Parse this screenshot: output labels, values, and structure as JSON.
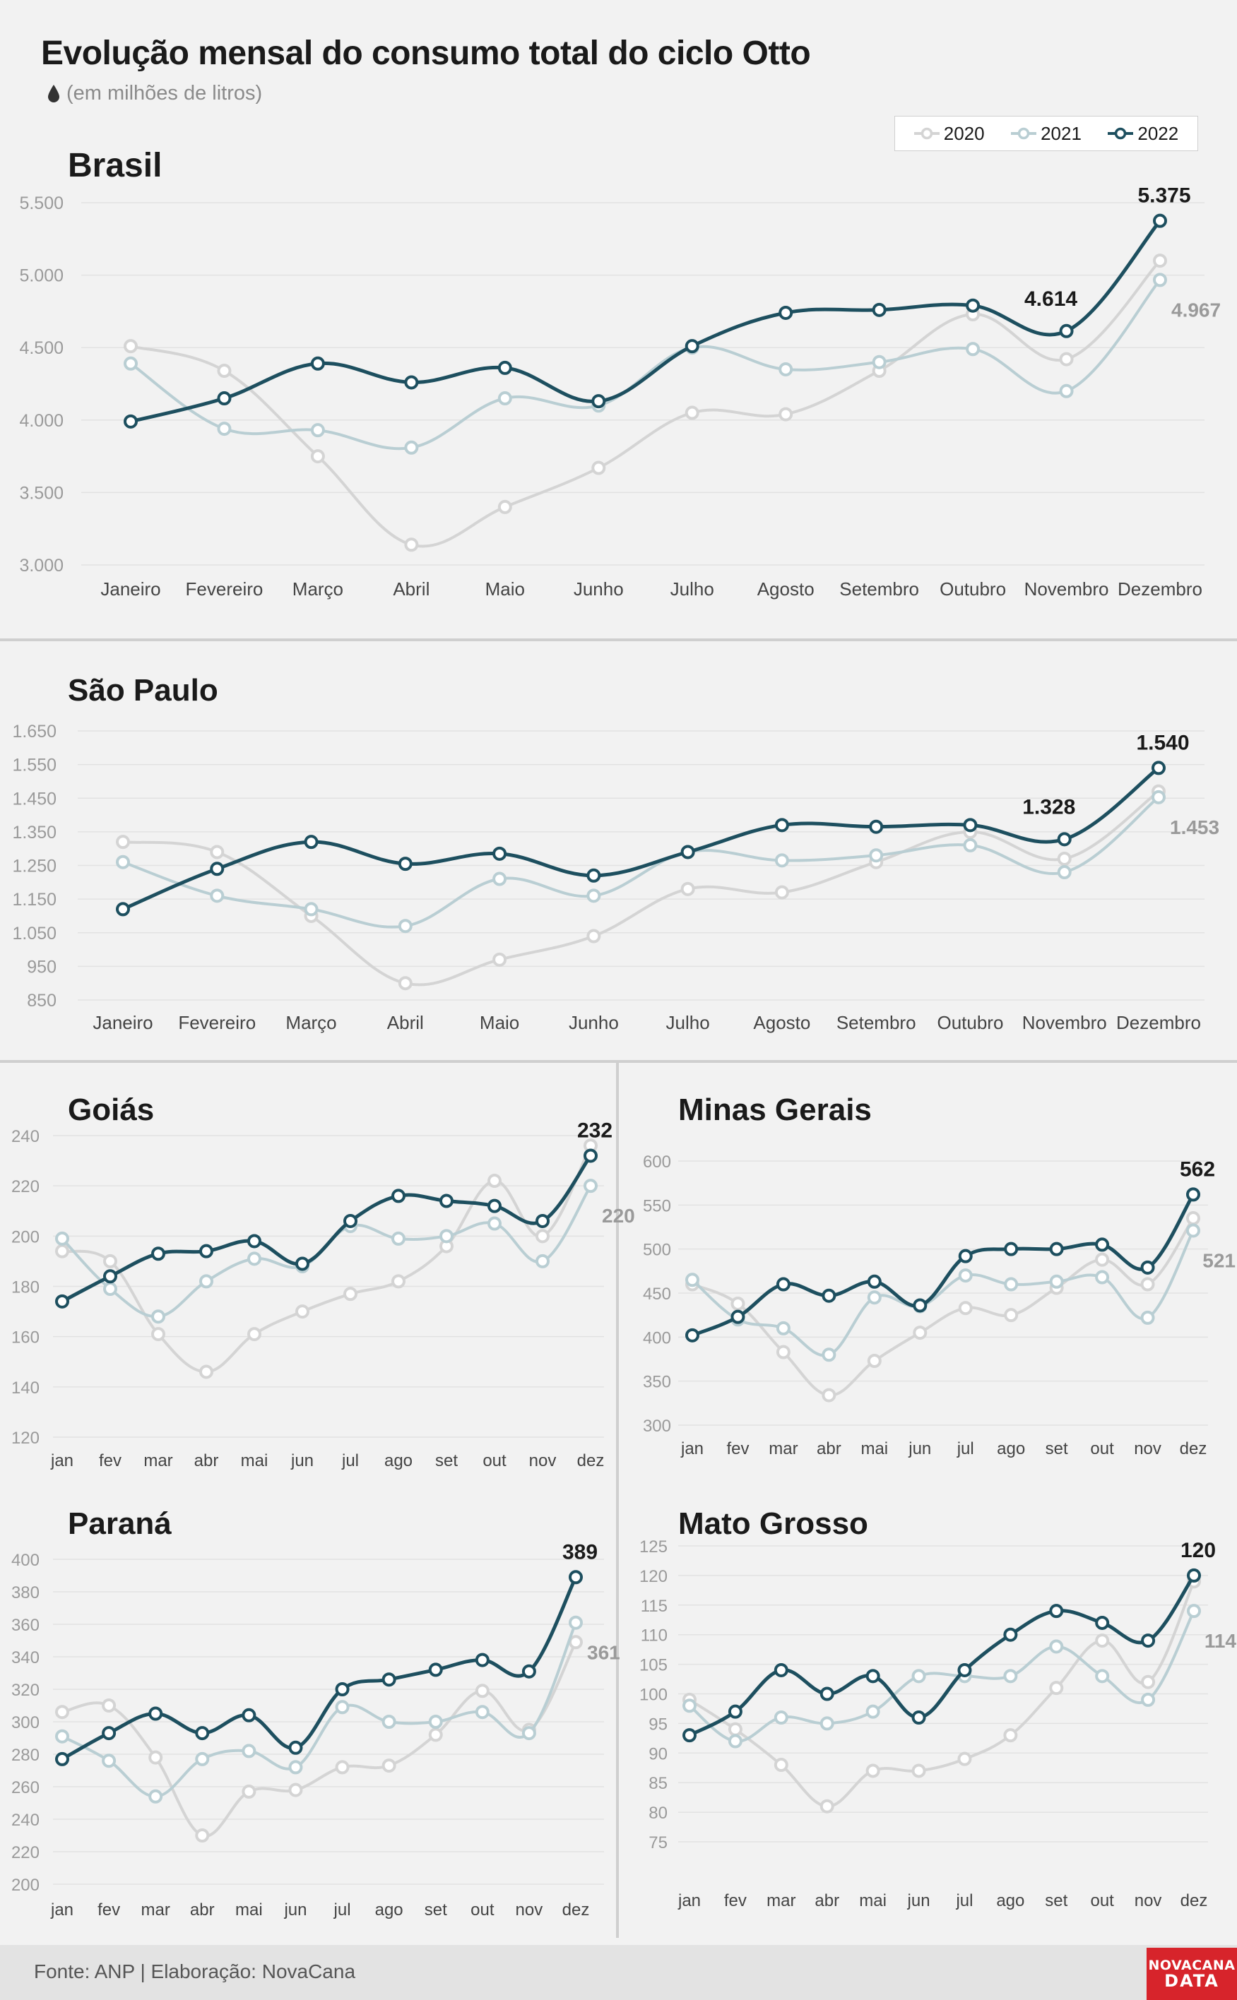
{
  "title": "Evolução mensal do consumo total do ciclo Otto",
  "subtitle": "(em milhões de litros)",
  "icons": {
    "subtitle_icon": "drop-icon"
  },
  "colors": {
    "2020": "#d4d4d4",
    "2021": "#b9ced3",
    "2022": "#1d4f5f"
  },
  "legend": [
    {
      "label": "2020",
      "color": "#d4d4d4"
    },
    {
      "label": "2021",
      "color": "#b9ced3"
    },
    {
      "label": "2022",
      "color": "#1d4f5f"
    }
  ],
  "footer": {
    "source": "Fonte: ANP | Elaboração: NovaCana",
    "logo_line1": "NOVACANA",
    "logo_line2": "DATA"
  },
  "chart_data": [
    {
      "type": "line",
      "title": "Brasil",
      "categories": [
        "Janeiro",
        "Fevereiro",
        "Março",
        "Abril",
        "Maio",
        "Junho",
        "Julho",
        "Agosto",
        "Setembro",
        "Outubro",
        "Novembro",
        "Dezembro"
      ],
      "yticks": [
        "3.000",
        "3.500",
        "4.000",
        "4.500",
        "5.000",
        "5.500"
      ],
      "ylim": [
        3000,
        5500
      ],
      "grid": true,
      "series": [
        {
          "name": "2020",
          "values": [
            4510,
            4340,
            3750,
            3140,
            3400,
            3670,
            4050,
            4040,
            4340,
            4730,
            4420,
            5100
          ]
        },
        {
          "name": "2021",
          "values": [
            4390,
            3940,
            3930,
            3810,
            4150,
            4100,
            4500,
            4350,
            4400,
            4490,
            4200,
            4967
          ]
        },
        {
          "name": "2022",
          "values": [
            3990,
            4150,
            4390,
            4260,
            4360,
            4130,
            4510,
            4740,
            4760,
            4790,
            4614,
            5375
          ]
        }
      ],
      "annotations": [
        {
          "text": "5.375",
          "series": "2022",
          "index": 11
        },
        {
          "text": "4.614",
          "series": "2022",
          "index": 10
        },
        {
          "text": "4.967",
          "series": "2021",
          "index": 11
        }
      ]
    },
    {
      "type": "line",
      "title": "São Paulo",
      "categories": [
        "Janeiro",
        "Fevereiro",
        "Março",
        "Abril",
        "Maio",
        "Junho",
        "Julho",
        "Agosto",
        "Setembro",
        "Outubro",
        "Novembro",
        "Dezembro"
      ],
      "yticks": [
        "850",
        "950",
        "1.050",
        "1.150",
        "1.250",
        "1.350",
        "1.450",
        "1.550",
        "1.650"
      ],
      "ylim": [
        850,
        1650
      ],
      "grid": true,
      "series": [
        {
          "name": "2020",
          "values": [
            1320,
            1290,
            1100,
            900,
            970,
            1040,
            1180,
            1170,
            1260,
            1350,
            1270,
            1470
          ]
        },
        {
          "name": "2021",
          "values": [
            1260,
            1160,
            1120,
            1070,
            1210,
            1160,
            1290,
            1265,
            1280,
            1310,
            1230,
            1453
          ]
        },
        {
          "name": "2022",
          "values": [
            1120,
            1240,
            1320,
            1255,
            1285,
            1220,
            1290,
            1370,
            1365,
            1370,
            1328,
            1540
          ]
        }
      ],
      "annotations": [
        {
          "text": "1.540",
          "series": "2022",
          "index": 11
        },
        {
          "text": "1.328",
          "series": "2022",
          "index": 10
        },
        {
          "text": "1.453",
          "series": "2021",
          "index": 11
        }
      ]
    },
    {
      "type": "line",
      "title": "Goiás",
      "categories": [
        "jan",
        "fev",
        "mar",
        "abr",
        "mai",
        "jun",
        "jul",
        "ago",
        "set",
        "out",
        "nov",
        "dez"
      ],
      "yticks": [
        "120",
        "140",
        "160",
        "180",
        "200",
        "220",
        "240"
      ],
      "ylim": [
        120,
        240
      ],
      "grid": true,
      "series": [
        {
          "name": "2020",
          "values": [
            194,
            190,
            161,
            146,
            161,
            170,
            177,
            182,
            196,
            222,
            200,
            236
          ]
        },
        {
          "name": "2021",
          "values": [
            199,
            179,
            168,
            182,
            191,
            188,
            204,
            199,
            200,
            205,
            190,
            220
          ]
        },
        {
          "name": "2022",
          "values": [
            174,
            184,
            193,
            194,
            198,
            189,
            206,
            216,
            214,
            212,
            206,
            232
          ]
        }
      ],
      "annotations": [
        {
          "text": "232",
          "series": "2022",
          "index": 11
        },
        {
          "text": "220",
          "series": "2021",
          "index": 11
        }
      ]
    },
    {
      "type": "line",
      "title": "Minas Gerais",
      "categories": [
        "jan",
        "fev",
        "mar",
        "abr",
        "mai",
        "jun",
        "jul",
        "ago",
        "set",
        "out",
        "nov",
        "dez"
      ],
      "yticks": [
        "300",
        "350",
        "400",
        "450",
        "500",
        "550",
        "600"
      ],
      "ylim": [
        300,
        600
      ],
      "grid": true,
      "series": [
        {
          "name": "2020",
          "values": [
            460,
            438,
            383,
            334,
            373,
            405,
            433,
            425,
            456,
            488,
            460,
            535
          ]
        },
        {
          "name": "2021",
          "values": [
            465,
            420,
            410,
            380,
            445,
            435,
            470,
            460,
            463,
            468,
            422,
            521
          ]
        },
        {
          "name": "2022",
          "values": [
            402,
            423,
            460,
            447,
            463,
            436,
            492,
            500,
            500,
            505,
            479,
            562
          ]
        }
      ],
      "annotations": [
        {
          "text": "562",
          "series": "2022",
          "index": 11
        },
        {
          "text": "521",
          "series": "2021",
          "index": 11
        }
      ]
    },
    {
      "type": "line",
      "title": "Paraná",
      "categories": [
        "jan",
        "fev",
        "mar",
        "abr",
        "mai",
        "jun",
        "jul",
        "ago",
        "set",
        "out",
        "nov",
        "dez"
      ],
      "yticks": [
        "200",
        "220",
        "240",
        "260",
        "280",
        "300",
        "320",
        "340",
        "360",
        "380",
        "400"
      ],
      "ylim": [
        200,
        400
      ],
      "grid": true,
      "series": [
        {
          "name": "2020",
          "values": [
            306,
            310,
            278,
            230,
            257,
            258,
            272,
            273,
            292,
            319,
            295,
            349
          ]
        },
        {
          "name": "2021",
          "values": [
            291,
            276,
            254,
            277,
            282,
            272,
            309,
            300,
            300,
            306,
            293,
            361
          ]
        },
        {
          "name": "2022",
          "values": [
            277,
            293,
            305,
            293,
            304,
            284,
            320,
            326,
            332,
            338,
            331,
            389
          ]
        }
      ],
      "annotations": [
        {
          "text": "389",
          "series": "2022",
          "index": 11
        },
        {
          "text": "361",
          "series": "2021",
          "index": 11
        }
      ]
    },
    {
      "type": "line",
      "title": "Mato Grosso",
      "categories": [
        "jan",
        "fev",
        "mar",
        "abr",
        "mai",
        "jun",
        "jul",
        "ago",
        "set",
        "out",
        "nov",
        "dez"
      ],
      "yticks": [
        "75",
        "80",
        "85",
        "90",
        "95",
        "100",
        "105",
        "110",
        "115",
        "120",
        "125"
      ],
      "ylim": [
        75,
        125
      ],
      "grid": true,
      "series": [
        {
          "name": "2020",
          "values": [
            99,
            94,
            88,
            81,
            87,
            87,
            89,
            93,
            101,
            109,
            102,
            119
          ]
        },
        {
          "name": "2021",
          "values": [
            98,
            92,
            96,
            95,
            97,
            103,
            103,
            103,
            108,
            103,
            99,
            114
          ]
        },
        {
          "name": "2022",
          "values": [
            93,
            97,
            104,
            100,
            103,
            96,
            104,
            110,
            114,
            112,
            109,
            120
          ]
        }
      ],
      "annotations": [
        {
          "text": "120",
          "series": "2022",
          "index": 11
        },
        {
          "text": "114",
          "series": "2021",
          "index": 11
        }
      ]
    }
  ]
}
